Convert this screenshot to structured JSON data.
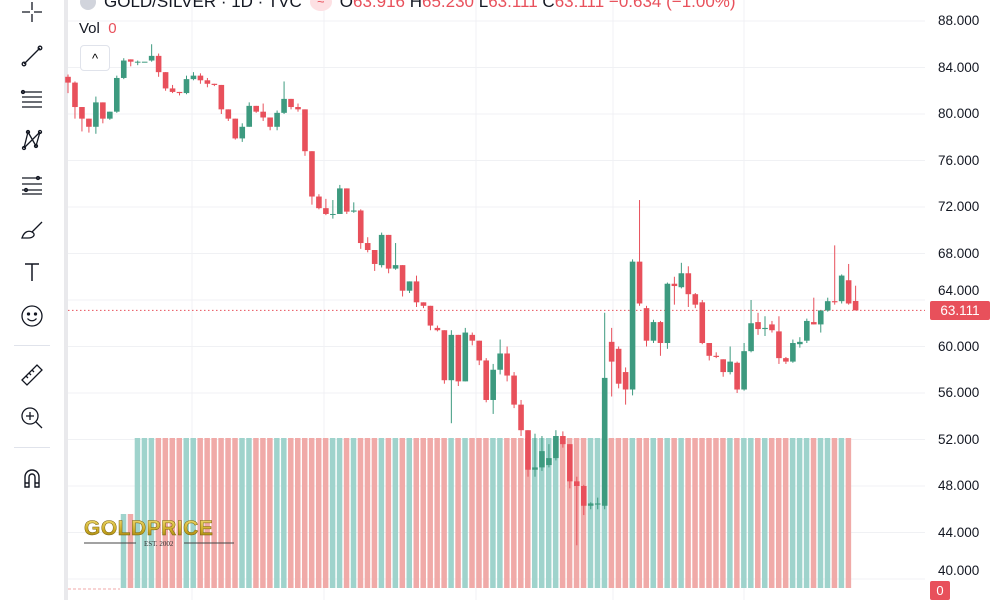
{
  "header": {
    "symbol": "GOLD/SILVER · 1D · TVC",
    "open_label": "O",
    "open": "63.916",
    "high_label": "H",
    "high": "65.230",
    "low_label": "L",
    "low": "63.111",
    "close_label": "C",
    "close": "63.111",
    "change": "−0.634 (−1.00%)"
  },
  "volume_legend": {
    "label": "Vol",
    "value": "0"
  },
  "collapse_glyph": "^",
  "watermark": {
    "brand": "GOLDPRICE",
    "tagline": "EST. 2002"
  },
  "toolbar": [
    "crosshair-icon",
    "trend-line-icon",
    "horizontal-lines-icon",
    "pattern-icon",
    "fib-icon",
    "brush-icon",
    "text-icon",
    "emoji-icon",
    "ruler-icon",
    "zoom-in-icon",
    "magnet-icon"
  ],
  "colors": {
    "up": "#3d9a7f",
    "down": "#e8505b",
    "vol_up": "#9fd3cc",
    "vol_down": "#f0aaa8",
    "grid": "#f0f1f4"
  },
  "chart_data": {
    "type": "candlestick",
    "title": "GOLD/SILVER",
    "interval": "1D",
    "ylim": [
      40,
      88
    ],
    "y_ticks": [
      "88.000",
      "84.000",
      "80.000",
      "76.000",
      "72.000",
      "68.000",
      "64.000",
      "60.000",
      "56.000",
      "52.000",
      "48.000",
      "44.000",
      "40.000"
    ],
    "last_price": "63.111",
    "volume_last": "0",
    "grid": true,
    "ohlc": [
      [
        83.2,
        83.4,
        81.8,
        82.7
      ],
      [
        82.7,
        82.8,
        79.6,
        80.6
      ],
      [
        80.6,
        80.6,
        78.5,
        79.6
      ],
      [
        79.6,
        79.6,
        78.4,
        78.9
      ],
      [
        78.9,
        81.5,
        78.3,
        81.0
      ],
      [
        81.0,
        81.0,
        79.2,
        79.6
      ],
      [
        79.6,
        80.2,
        79.5,
        80.2
      ],
      [
        80.2,
        83.3,
        80.1,
        83.1
      ],
      [
        83.1,
        84.8,
        83.0,
        84.6
      ],
      [
        84.7,
        84.7,
        84.1,
        84.5
      ],
      [
        84.5,
        84.6,
        84.2,
        84.5
      ],
      [
        84.5,
        84.5,
        84.5,
        84.5
      ],
      [
        84.6,
        86.0,
        84.5,
        85.0
      ],
      [
        85.0,
        85.2,
        83.2,
        83.6
      ],
      [
        83.6,
        83.6,
        82.0,
        82.2
      ],
      [
        82.2,
        82.5,
        81.8,
        81.9
      ],
      [
        81.9,
        81.9,
        81.6,
        81.8
      ],
      [
        81.8,
        83.3,
        81.7,
        83.0
      ],
      [
        83.0,
        83.6,
        82.9,
        83.3
      ],
      [
        83.3,
        83.5,
        82.6,
        82.9
      ],
      [
        82.9,
        83.1,
        82.3,
        82.6
      ],
      [
        82.6,
        82.6,
        82.4,
        82.5
      ],
      [
        82.5,
        82.5,
        80.0,
        80.4
      ],
      [
        80.4,
        80.4,
        79.4,
        79.6
      ],
      [
        79.6,
        79.6,
        77.8,
        77.9
      ],
      [
        77.9,
        79.2,
        77.6,
        78.9
      ],
      [
        78.9,
        81.0,
        78.9,
        80.7
      ],
      [
        80.7,
        80.7,
        80.1,
        80.2
      ],
      [
        80.2,
        80.9,
        79.4,
        79.7
      ],
      [
        79.7,
        79.7,
        78.6,
        78.9
      ],
      [
        78.9,
        80.3,
        78.6,
        80.1
      ],
      [
        80.1,
        82.8,
        80.0,
        81.3
      ],
      [
        81.3,
        81.3,
        80.4,
        80.6
      ],
      [
        80.6,
        80.9,
        80.2,
        80.4
      ],
      [
        80.4,
        80.4,
        76.4,
        76.8
      ],
      [
        76.8,
        76.8,
        72.2,
        72.9
      ],
      [
        72.9,
        73.1,
        71.8,
        71.9
      ],
      [
        71.9,
        72.7,
        71.3,
        71.4
      ],
      [
        71.4,
        72.6,
        71.0,
        71.4
      ],
      [
        71.4,
        73.9,
        71.4,
        73.6
      ],
      [
        73.6,
        73.6,
        71.4,
        71.6
      ],
      [
        71.6,
        72.4,
        71.5,
        71.7
      ],
      [
        71.7,
        71.8,
        68.4,
        68.9
      ],
      [
        68.9,
        69.4,
        68.1,
        68.3
      ],
      [
        68.3,
        68.3,
        66.5,
        67.1
      ],
      [
        67.0,
        69.8,
        66.8,
        69.6
      ],
      [
        69.6,
        69.6,
        66.3,
        66.7
      ],
      [
        66.7,
        68.9,
        66.6,
        67.0
      ],
      [
        67.0,
        67.0,
        64.3,
        64.8
      ],
      [
        64.8,
        65.6,
        64.6,
        65.6
      ],
      [
        65.6,
        66.1,
        63.4,
        63.8
      ],
      [
        63.8,
        63.8,
        63.3,
        63.5
      ],
      [
        63.5,
        63.5,
        61.4,
        61.8
      ],
      [
        61.6,
        61.8,
        61.3,
        61.4
      ],
      [
        61.4,
        61.4,
        56.8,
        57.1
      ],
      [
        57.1,
        61.4,
        53.4,
        61.0
      ],
      [
        61.0,
        61.0,
        56.6,
        57.0
      ],
      [
        57.0,
        61.6,
        57.0,
        61.2
      ],
      [
        61.0,
        61.2,
        60.1,
        60.5
      ],
      [
        60.5,
        60.5,
        58.4,
        58.8
      ],
      [
        58.8,
        59.0,
        55.2,
        55.4
      ],
      [
        55.4,
        58.5,
        54.2,
        58.0
      ],
      [
        58.0,
        60.6,
        57.6,
        59.4
      ],
      [
        59.4,
        60.0,
        57.0,
        57.5
      ],
      [
        57.5,
        57.8,
        54.7,
        55.0
      ],
      [
        55.0,
        55.4,
        52.3,
        52.8
      ],
      [
        52.8,
        52.8,
        48.8,
        49.4
      ],
      [
        49.4,
        52.5,
        48.8,
        49.6
      ],
      [
        49.6,
        52.3,
        49.3,
        51.0
      ],
      [
        49.8,
        51.6,
        49.6,
        50.4
      ],
      [
        50.4,
        52.8,
        50.2,
        52.3
      ],
      [
        52.3,
        52.7,
        51.3,
        51.6
      ],
      [
        51.6,
        51.6,
        47.8,
        48.4
      ],
      [
        48.4,
        48.8,
        42.9,
        48.0
      ],
      [
        48.0,
        48.1,
        45.5,
        46.3
      ],
      [
        46.3,
        46.6,
        46.0,
        46.5
      ],
      [
        46.4,
        47.0,
        46.0,
        46.5
      ],
      [
        46.3,
        62.9,
        46.0,
        57.3
      ],
      [
        60.4,
        61.6,
        55.7,
        58.7
      ],
      [
        59.8,
        60.0,
        56.4,
        56.8
      ],
      [
        57.8,
        58.2,
        55.0,
        56.3
      ],
      [
        56.3,
        67.5,
        55.8,
        67.3
      ],
      [
        67.3,
        72.6,
        63.5,
        63.7
      ],
      [
        63.3,
        63.5,
        60.0,
        60.5
      ],
      [
        60.5,
        62.3,
        60.3,
        62.1
      ],
      [
        62.1,
        62.2,
        59.2,
        60.3
      ],
      [
        60.3,
        65.5,
        59.8,
        65.4
      ],
      [
        65.4,
        66.0,
        63.6,
        65.2
      ],
      [
        65.1,
        67.2,
        65.0,
        66.3
      ],
      [
        66.3,
        66.9,
        63.4,
        64.5
      ],
      [
        64.5,
        64.6,
        63.3,
        63.6
      ],
      [
        63.8,
        64.0,
        60.2,
        60.3
      ],
      [
        60.3,
        60.3,
        58.8,
        59.2
      ],
      [
        59.2,
        59.5,
        59.0,
        59.1
      ],
      [
        58.9,
        58.9,
        57.4,
        57.8
      ],
      [
        57.8,
        60.0,
        57.6,
        58.7
      ],
      [
        58.6,
        58.7,
        56.0,
        56.3
      ],
      [
        56.3,
        60.3,
        56.2,
        59.6
      ],
      [
        59.6,
        64.0,
        59.5,
        62.0
      ],
      [
        62.1,
        62.9,
        61.0,
        61.5
      ],
      [
        61.5,
        62.6,
        60.9,
        61.6
      ],
      [
        61.9,
        62.2,
        61.2,
        61.4
      ],
      [
        61.3,
        62.6,
        58.5,
        59.0
      ],
      [
        59.0,
        59.1,
        58.5,
        58.7
      ],
      [
        58.7,
        60.6,
        58.6,
        60.3
      ],
      [
        60.2,
        60.8,
        59.9,
        60.4
      ],
      [
        60.5,
        62.4,
        60.3,
        62.2
      ],
      [
        62.1,
        64.2,
        61.9,
        61.9
      ],
      [
        61.9,
        63.1,
        61.2,
        63.1
      ],
      [
        63.1,
        64.2,
        63.0,
        63.9
      ],
      [
        63.9,
        68.7,
        63.6,
        63.8
      ],
      [
        63.9,
        66.2,
        63.7,
        66.1
      ],
      [
        65.7,
        67.1,
        63.6,
        63.7
      ],
      [
        63.916,
        65.23,
        63.111,
        63.111
      ]
    ]
  }
}
